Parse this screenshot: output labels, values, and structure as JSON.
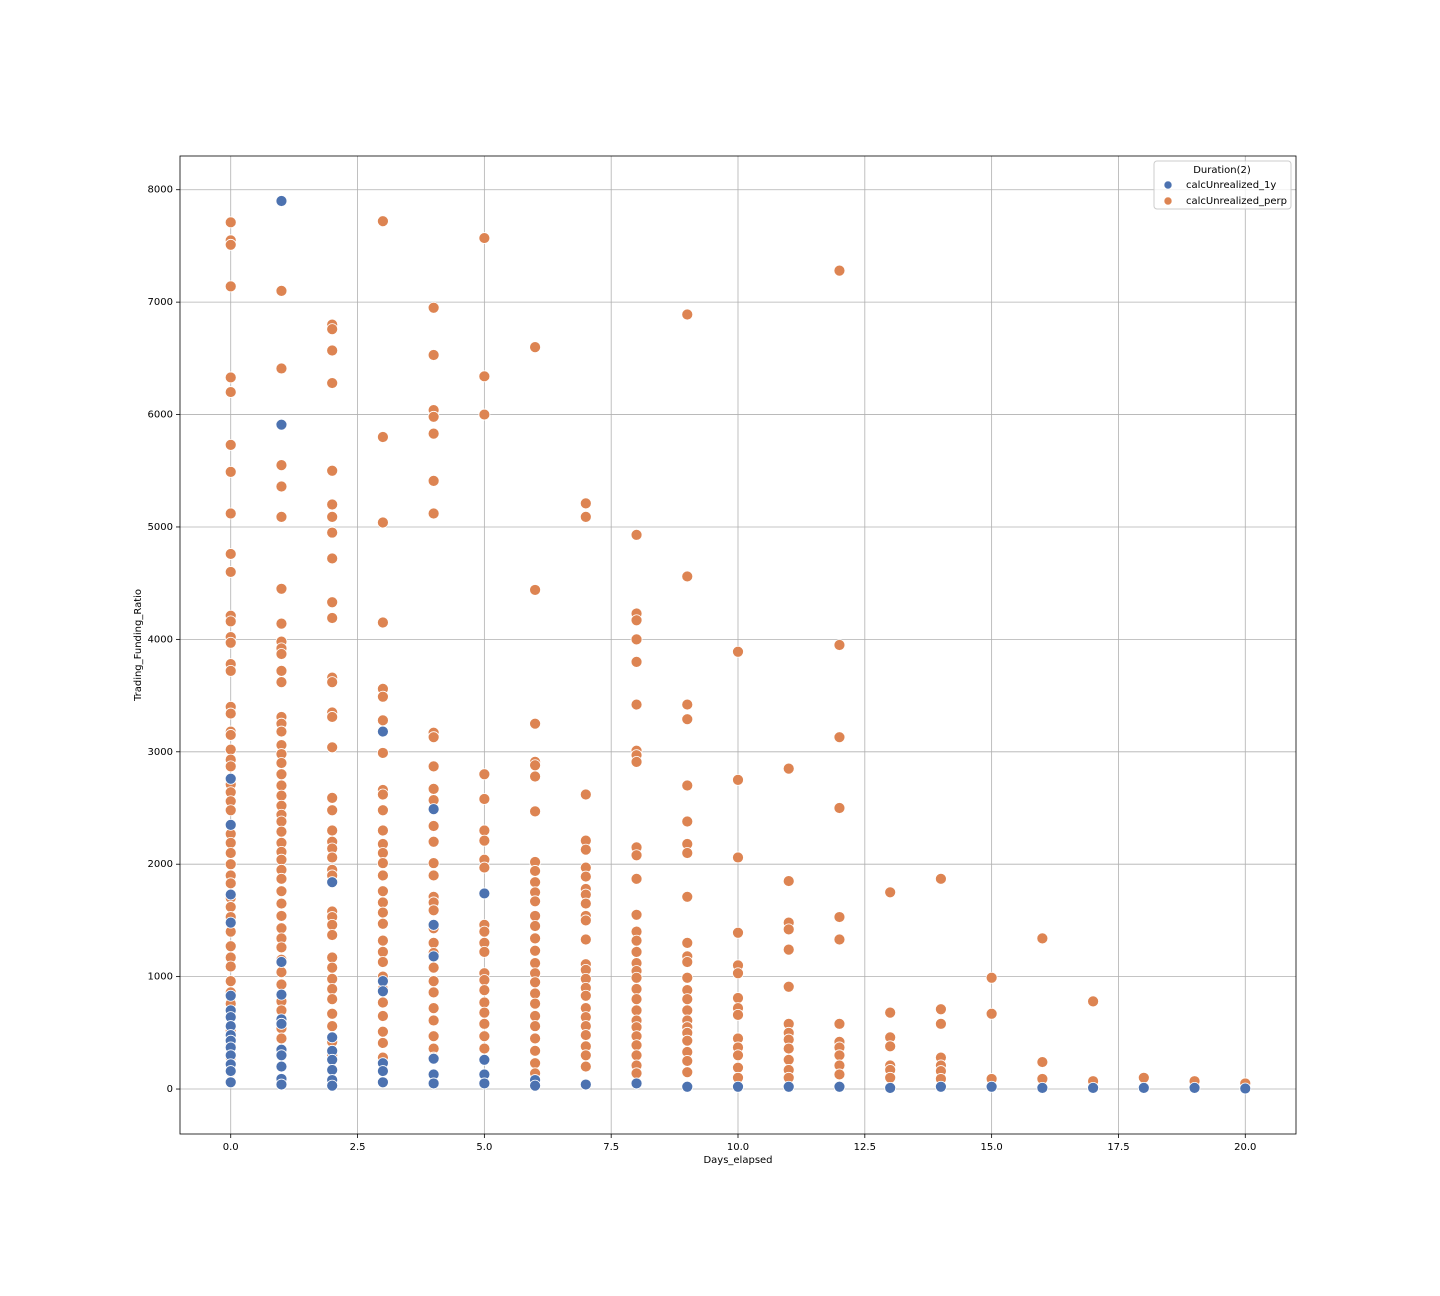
{
  "chart_data": {
    "type": "scatter",
    "x_label": "Days_elapsed",
    "y_label": "Trading_Funding_Ratio",
    "legend_title": "Duration(2)",
    "legend_position": "upper right",
    "grid": true,
    "xlim": [
      -1,
      21
    ],
    "ylim": [
      -400,
      8300
    ],
    "xticks": [
      {
        "value": 0,
        "label": "0.0"
      },
      {
        "value": 2.5,
        "label": "2.5"
      },
      {
        "value": 5,
        "label": "5.0"
      },
      {
        "value": 7.5,
        "label": "7.5"
      },
      {
        "value": 10,
        "label": "10.0"
      },
      {
        "value": 12.5,
        "label": "12.5"
      },
      {
        "value": 15,
        "label": "15.0"
      },
      {
        "value": 17.5,
        "label": "17.5"
      },
      {
        "value": 20,
        "label": "20.0"
      }
    ],
    "yticks": [
      0,
      1000,
      2000,
      3000,
      4000,
      5000,
      6000,
      7000,
      8000
    ],
    "series": [
      {
        "name": "calcUnrealized_1y",
        "color": "#4c72b0",
        "x": [
          0,
          0,
          0,
          0,
          0,
          0,
          0,
          0,
          0,
          0,
          0,
          0,
          0,
          0,
          0,
          1,
          1,
          1,
          1,
          1,
          1,
          1,
          1,
          1,
          1,
          1,
          2,
          2,
          2,
          2,
          2,
          2,
          2,
          3,
          3,
          3,
          3,
          3,
          3,
          4,
          4,
          4,
          4,
          4,
          4,
          5,
          5,
          5,
          5,
          6,
          6,
          7,
          8,
          9,
          10,
          11,
          12,
          13,
          14,
          15,
          16,
          17,
          18,
          19,
          20
        ],
        "values": [
          1730,
          1480,
          830,
          700,
          640,
          560,
          480,
          430,
          370,
          300,
          220,
          160,
          60,
          2760,
          2350,
          7900,
          5910,
          1130,
          840,
          620,
          580,
          350,
          300,
          200,
          90,
          40,
          1840,
          460,
          340,
          260,
          170,
          80,
          30,
          3180,
          960,
          870,
          230,
          160,
          60,
          2490,
          1460,
          1180,
          270,
          130,
          50,
          1740,
          260,
          130,
          50,
          80,
          30,
          40,
          50,
          20,
          20,
          20,
          20,
          10,
          20,
          20,
          10,
          10,
          10,
          10,
          5
        ]
      },
      {
        "name": "calcUnrealized_perp",
        "color": "#dd8452",
        "x": [
          0,
          0,
          0,
          0,
          0,
          0,
          0,
          0,
          0,
          0,
          0,
          0,
          0,
          0,
          0,
          0,
          0,
          0,
          0,
          0,
          0,
          0,
          0,
          0,
          0,
          0,
          0,
          0,
          0,
          0,
          0,
          0,
          0,
          0,
          0,
          0,
          0,
          0,
          0,
          0,
          0,
          0,
          0,
          0,
          0,
          0,
          0,
          0,
          0,
          0,
          0,
          1,
          1,
          1,
          1,
          1,
          1,
          1,
          1,
          1,
          1,
          1,
          1,
          1,
          1,
          1,
          1,
          1,
          1,
          1,
          1,
          1,
          1,
          1,
          1,
          1,
          1,
          1,
          1,
          1,
          1,
          1,
          1,
          1,
          1,
          1,
          1,
          1,
          1,
          1,
          1,
          1,
          1,
          1,
          1,
          1,
          1,
          2,
          2,
          2,
          2,
          2,
          2,
          2,
          2,
          2,
          2,
          2,
          2,
          2,
          2,
          2,
          2,
          2,
          2,
          2,
          2,
          2,
          2,
          2,
          2,
          2,
          2,
          2,
          2,
          2,
          2,
          2,
          2,
          2,
          2,
          2,
          2,
          2,
          2,
          3,
          3,
          3,
          3,
          3,
          3,
          3,
          3,
          3,
          3,
          3,
          3,
          3,
          3,
          3,
          3,
          3,
          3,
          3,
          3,
          3,
          3,
          3,
          3,
          3,
          3,
          3,
          3,
          3,
          3,
          4,
          4,
          4,
          4,
          4,
          4,
          4,
          4,
          4,
          4,
          4,
          4,
          4,
          4,
          4,
          4,
          4,
          4,
          4,
          4,
          4,
          4,
          4,
          4,
          4,
          4,
          4,
          4,
          4,
          4,
          5,
          5,
          5,
          5,
          5,
          5,
          5,
          5,
          5,
          5,
          5,
          5,
          5,
          5,
          5,
          5,
          5,
          5,
          5,
          5,
          5,
          6,
          6,
          6,
          6,
          6,
          6,
          6,
          6,
          6,
          6,
          6,
          6,
          6,
          6,
          6,
          6,
          6,
          6,
          6,
          6,
          6,
          6,
          6,
          6,
          6,
          6,
          6,
          7,
          7,
          7,
          7,
          7,
          7,
          7,
          7,
          7,
          7,
          7,
          7,
          7,
          7,
          7,
          7,
          7,
          7,
          7,
          7,
          7,
          7,
          7,
          7,
          7,
          8,
          8,
          8,
          8,
          8,
          8,
          8,
          8,
          8,
          8,
          8,
          8,
          8,
          8,
          8,
          8,
          8,
          8,
          8,
          8,
          8,
          8,
          8,
          8,
          8,
          8,
          8,
          8,
          8,
          9,
          9,
          9,
          9,
          9,
          9,
          9,
          9,
          9,
          9,
          9,
          9,
          9,
          9,
          9,
          9,
          9,
          9,
          9,
          9,
          9,
          9,
          9,
          10,
          10,
          10,
          10,
          10,
          10,
          10,
          10,
          10,
          10,
          10,
          10,
          10,
          10,
          11,
          11,
          11,
          11,
          11,
          11,
          11,
          11,
          11,
          11,
          11,
          11,
          11,
          12,
          12,
          12,
          12,
          12,
          12,
          12,
          12,
          12,
          12,
          12,
          12,
          13,
          13,
          13,
          13,
          13,
          13,
          13,
          14,
          14,
          14,
          14,
          14,
          14,
          14,
          15,
          15,
          15,
          16,
          16,
          16,
          17,
          17,
          18,
          19,
          20
        ],
        "values": [
          7710,
          7550,
          7510,
          7140,
          6330,
          6200,
          5730,
          5490,
          5120,
          4760,
          4600,
          4210,
          4160,
          4020,
          3970,
          3780,
          3720,
          3400,
          3340,
          3180,
          3150,
          3020,
          2930,
          2870,
          2710,
          2640,
          2560,
          2480,
          2350,
          2270,
          2190,
          2100,
          2000,
          1900,
          1830,
          1700,
          1620,
          1530,
          1400,
          1270,
          1170,
          1090,
          960,
          860,
          760,
          640,
          520,
          400,
          280,
          150,
          60,
          7100,
          6410,
          5550,
          5360,
          5090,
          4450,
          4140,
          3980,
          3920,
          3870,
          3720,
          3620,
          3310,
          3250,
          3180,
          3060,
          2980,
          2900,
          2800,
          2700,
          2610,
          2520,
          2440,
          2380,
          2290,
          2190,
          2110,
          2040,
          1950,
          1870,
          1760,
          1650,
          1540,
          1430,
          1340,
          1260,
          1150,
          1040,
          930,
          780,
          700,
          540,
          450,
          330,
          200,
          90,
          6800,
          6760,
          6570,
          6280,
          5500,
          5200,
          5090,
          4950,
          4720,
          4330,
          4190,
          3660,
          3620,
          3350,
          3310,
          3040,
          2590,
          2480,
          2300,
          2200,
          2140,
          2060,
          1950,
          1900,
          1580,
          1530,
          1460,
          1370,
          1170,
          1080,
          980,
          890,
          800,
          670,
          560,
          420,
          300,
          180,
          7720,
          5800,
          5040,
          4150,
          3560,
          3490,
          3280,
          2990,
          2660,
          2620,
          2480,
          2300,
          2180,
          2100,
          2010,
          1900,
          1760,
          1660,
          1570,
          1470,
          1320,
          1220,
          1130,
          1000,
          890,
          770,
          650,
          510,
          410,
          280,
          6950,
          6530,
          6040,
          5980,
          5830,
          5410,
          5120,
          3170,
          3130,
          2870,
          2670,
          2570,
          2340,
          2200,
          2010,
          1900,
          1710,
          1660,
          1590,
          1430,
          1300,
          1210,
          1080,
          960,
          860,
          720,
          610,
          470,
          360,
          280,
          7570,
          6340,
          6000,
          2800,
          2580,
          2300,
          2210,
          2040,
          1970,
          1460,
          1400,
          1300,
          1220,
          1030,
          970,
          880,
          770,
          680,
          580,
          470,
          360,
          6600,
          4440,
          3250,
          2910,
          2880,
          2780,
          2470,
          2020,
          1940,
          1840,
          1750,
          1670,
          1540,
          1450,
          1340,
          1230,
          1120,
          1030,
          950,
          850,
          760,
          650,
          560,
          450,
          340,
          230,
          140,
          5210,
          5090,
          2620,
          2210,
          2130,
          1970,
          1890,
          1780,
          1730,
          1650,
          1540,
          1500,
          1330,
          1110,
          1060,
          980,
          900,
          830,
          720,
          640,
          560,
          480,
          380,
          300,
          200,
          4930,
          4230,
          4170,
          4000,
          3800,
          3420,
          3010,
          2970,
          2910,
          2150,
          2080,
          1870,
          1550,
          1400,
          1320,
          1220,
          1120,
          1050,
          990,
          890,
          800,
          700,
          610,
          550,
          470,
          390,
          300,
          210,
          140,
          6890,
          4560,
          3420,
          3290,
          2700,
          2380,
          2180,
          2100,
          1710,
          1300,
          1180,
          1130,
          990,
          880,
          800,
          700,
          610,
          550,
          500,
          430,
          330,
          250,
          150,
          3890,
          2750,
          2060,
          1390,
          1100,
          1030,
          810,
          720,
          660,
          450,
          370,
          300,
          190,
          100,
          2850,
          1850,
          1480,
          1420,
          1240,
          910,
          580,
          500,
          440,
          360,
          260,
          170,
          100,
          7280,
          3950,
          3130,
          2500,
          1530,
          1330,
          580,
          420,
          370,
          300,
          210,
          130,
          1750,
          680,
          460,
          380,
          210,
          170,
          100,
          1870,
          710,
          580,
          280,
          210,
          160,
          90,
          990,
          670,
          90,
          1340,
          240,
          90,
          780,
          70,
          100,
          70,
          50
        ]
      }
    ]
  }
}
